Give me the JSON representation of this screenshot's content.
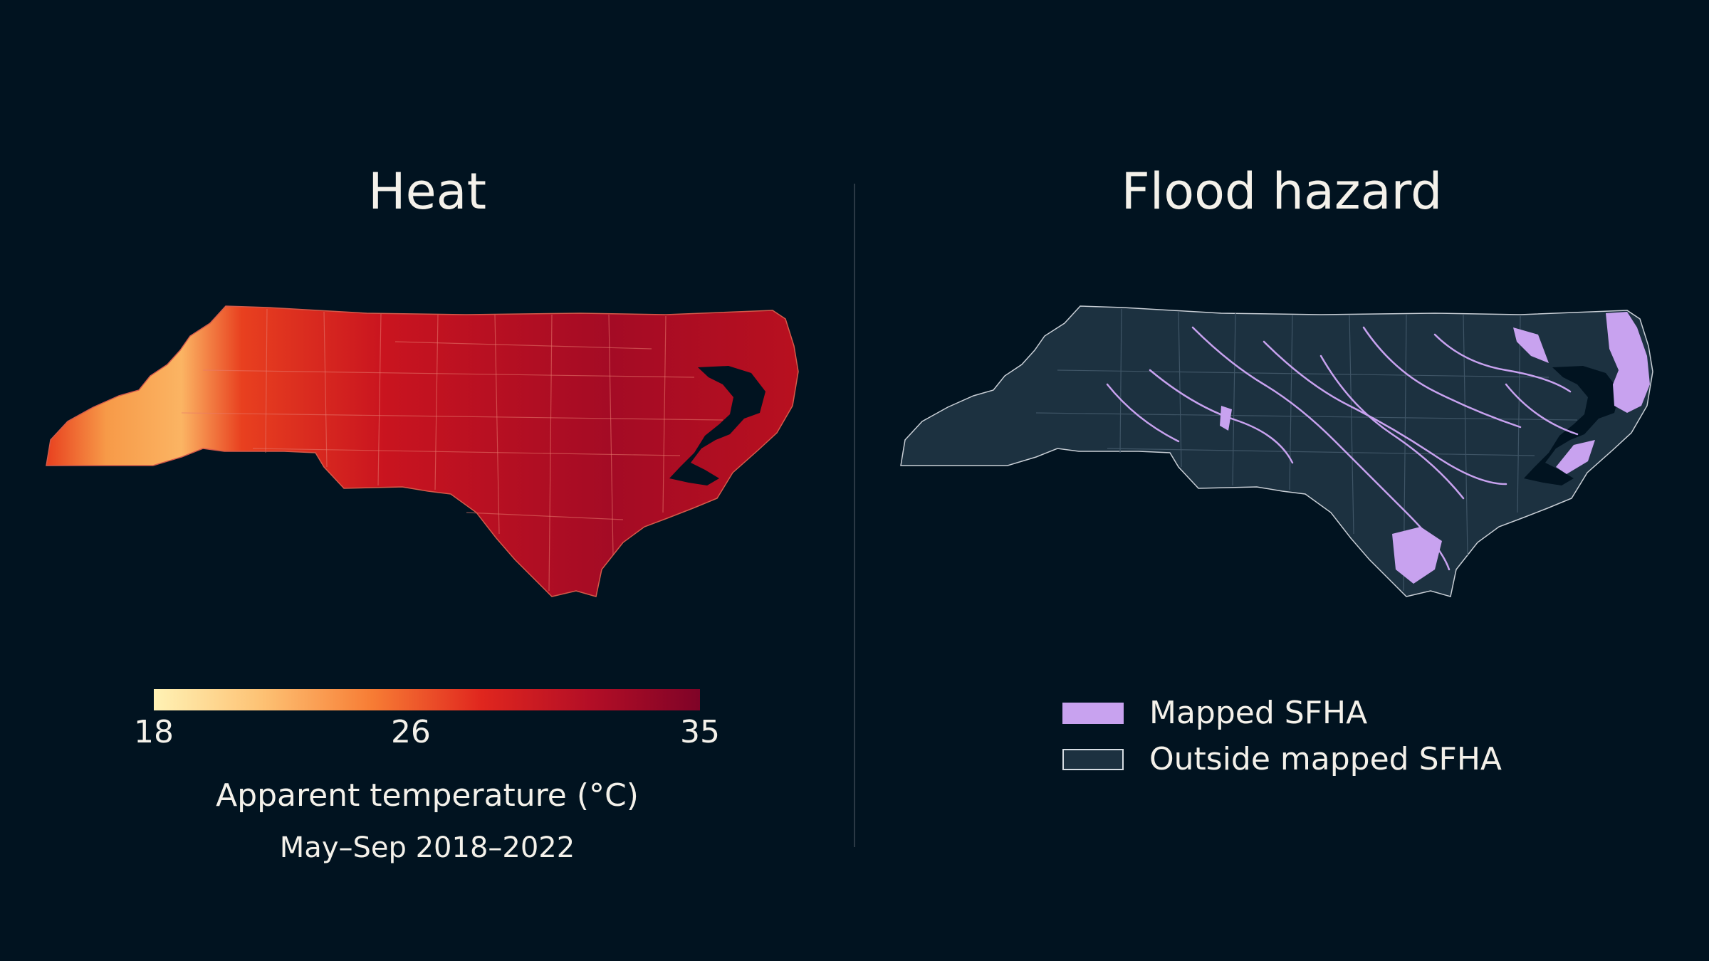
{
  "heat": {
    "title": "Heat",
    "colorbar": {
      "min": 18,
      "max": 35,
      "ticks": [
        "18",
        "26",
        "35"
      ],
      "tick_values": [
        18,
        26,
        35
      ],
      "label": "Apparent temperature (°C)",
      "sublabel": "May–Sep 2018–2022",
      "colors": [
        "#fff2b5",
        "#fdc173",
        "#f77c34",
        "#e0261e",
        "#b30e26",
        "#7f0327"
      ]
    }
  },
  "flood": {
    "title": "Flood hazard",
    "legend": [
      {
        "label": "Mapped SFHA",
        "color": "#c8a2ef"
      },
      {
        "label": "Outside mapped SFHA",
        "color": "#1c3140",
        "border": "#d6dde3"
      }
    ]
  },
  "colors": {
    "background": "#011320",
    "divider": "#2b3945",
    "map_outline": "#c9cfd6"
  }
}
